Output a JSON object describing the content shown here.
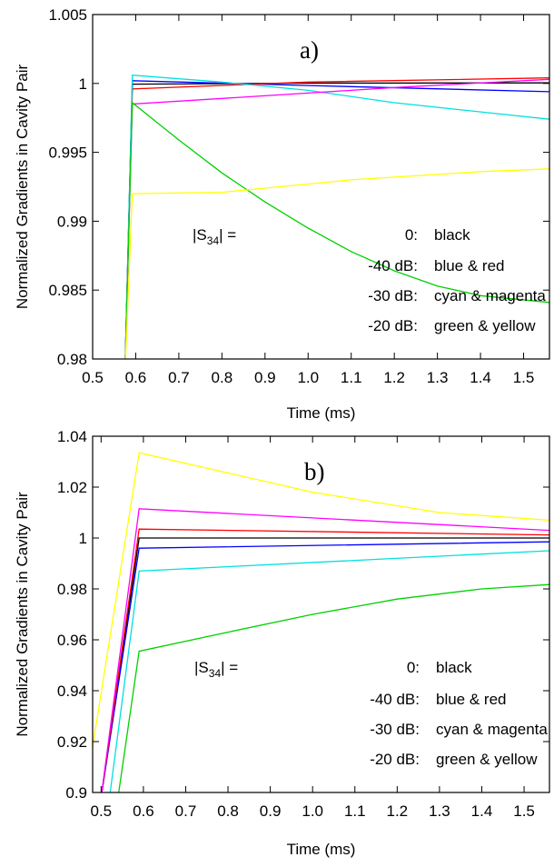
{
  "chart_data": [
    {
      "type": "line",
      "annotation": "a)",
      "xlabel": "Time (ms)",
      "ylabel": "Normalized Gradients in Cavity Pair",
      "xlim": [
        0.5,
        1.56
      ],
      "ylim": [
        0.98,
        1.005
      ],
      "xticks": [
        "0.5",
        "0.6",
        "0.7",
        "0.8",
        "0.9",
        "1.0",
        "1.1",
        "1.2",
        "1.3",
        "1.4",
        "1.5"
      ],
      "yticks": [
        "0.98",
        "0.985",
        "0.99",
        "0.995",
        "1",
        "1.005"
      ],
      "legend": {
        "line1": {
          "prefix": "|S",
          "sub": "34",
          "suffix": "|  =",
          "value": "0:",
          "desc": "black"
        },
        "line2": {
          "value": "-40 dB:",
          "desc": "blue & red"
        },
        "line3": {
          "value": "-30 dB:",
          "desc": "cyan & magenta"
        },
        "line4": {
          "value": "-20 dB:",
          "desc": "green & yellow"
        }
      },
      "series": [
        {
          "color": "#000000",
          "points": [
            [
              0.575,
              0.979
            ],
            [
              0.592,
              0.99995
            ],
            [
              1.0,
              1.00002
            ],
            [
              1.56,
              1.00004
            ]
          ]
        },
        {
          "color": "#0000ff",
          "points": [
            [
              0.575,
              0.979
            ],
            [
              0.592,
              1.0002
            ],
            [
              1.0,
              0.99985
            ],
            [
              1.56,
              0.9994
            ]
          ]
        },
        {
          "color": "#ff0000",
          "points": [
            [
              0.575,
              0.979
            ],
            [
              0.592,
              0.9996
            ],
            [
              1.0,
              1.0001
            ],
            [
              1.56,
              1.0004
            ]
          ]
        },
        {
          "color": "#00e0e0",
          "points": [
            [
              0.575,
              0.979
            ],
            [
              0.592,
              1.0006
            ],
            [
              0.8,
              1.0001
            ],
            [
              1.0,
              0.9995
            ],
            [
              1.2,
              0.9986
            ],
            [
              1.56,
              0.9974
            ]
          ]
        },
        {
          "color": "#ff00ff",
          "points": [
            [
              0.575,
              0.979
            ],
            [
              0.592,
              0.9985
            ],
            [
              1.0,
              0.9993
            ],
            [
              1.2,
              0.9997
            ],
            [
              1.56,
              1.0003
            ]
          ]
        },
        {
          "color": "#00d000",
          "points": [
            [
              0.575,
              0.979
            ],
            [
              0.592,
              0.9986
            ],
            [
              0.7,
              0.9959
            ],
            [
              0.8,
              0.9935
            ],
            [
              0.9,
              0.9914
            ],
            [
              1.0,
              0.9895
            ],
            [
              1.1,
              0.9878
            ],
            [
              1.2,
              0.9864
            ],
            [
              1.3,
              0.9853
            ],
            [
              1.4,
              0.9846
            ],
            [
              1.56,
              0.9841
            ]
          ]
        },
        {
          "color": "#ffff00",
          "points": [
            [
              0.575,
              0.979
            ],
            [
              0.592,
              0.992
            ],
            [
              0.8,
              0.9921
            ],
            [
              0.9,
              0.9924
            ],
            [
              1.0,
              0.9927
            ],
            [
              1.1,
              0.993
            ],
            [
              1.2,
              0.9932
            ],
            [
              1.3,
              0.9934
            ],
            [
              1.4,
              0.9936
            ],
            [
              1.56,
              0.9938
            ]
          ]
        }
      ]
    },
    {
      "type": "line",
      "annotation": "b)",
      "xlabel": "Time (ms)",
      "ylabel": "Normalized Gradients in Cavity Pair",
      "xlim": [
        0.48,
        1.56
      ],
      "ylim": [
        0.9,
        1.04
      ],
      "xticks": [
        "0.5",
        "0.6",
        "0.7",
        "0.8",
        "0.9",
        "1.0",
        "1.1",
        "1.2",
        "1.3",
        "1.4",
        "1.5"
      ],
      "yticks": [
        "0.9",
        "0.92",
        "0.94",
        "0.96",
        "0.98",
        "1",
        "1.02",
        "1.04"
      ],
      "legend": {
        "line1": {
          "prefix": "|S",
          "sub": "34",
          "suffix": "|  =",
          "value": "0:",
          "desc": "black"
        },
        "line2": {
          "value": "-40 dB:",
          "desc": "blue & red"
        },
        "line3": {
          "value": "-30 dB:",
          "desc": "cyan & magenta"
        },
        "line4": {
          "value": "-20 dB:",
          "desc": "green & yellow"
        }
      },
      "series": [
        {
          "color": "#000000",
          "points": [
            [
              0.5,
              0.898
            ],
            [
              0.59,
              1.0
            ],
            [
              1.56,
              1.0
            ]
          ]
        },
        {
          "color": "#0000ff",
          "points": [
            [
              0.5,
              0.898
            ],
            [
              0.59,
              0.996
            ],
            [
              1.56,
              0.9985
            ]
          ]
        },
        {
          "color": "#ff0000",
          "points": [
            [
              0.5,
              0.898
            ],
            [
              0.59,
              1.0035
            ],
            [
              1.56,
              1.0012
            ]
          ]
        },
        {
          "color": "#00e0e0",
          "points": [
            [
              0.52,
              0.898
            ],
            [
              0.59,
              0.987
            ],
            [
              1.56,
              0.995
            ]
          ]
        },
        {
          "color": "#ff00ff",
          "points": [
            [
              0.5,
              0.898
            ],
            [
              0.59,
              1.0115
            ],
            [
              1.56,
              1.003
            ]
          ]
        },
        {
          "color": "#00d000",
          "points": [
            [
              0.54,
              0.898
            ],
            [
              0.59,
              0.9555
            ],
            [
              0.8,
              0.963
            ],
            [
              1.0,
              0.97
            ],
            [
              1.2,
              0.976
            ],
            [
              1.4,
              0.98
            ],
            [
              1.56,
              0.9817
            ]
          ]
        },
        {
          "color": "#ffff00",
          "points": [
            [
              0.48,
              0.918
            ],
            [
              0.59,
              1.0335
            ],
            [
              1.0,
              1.018
            ],
            [
              1.3,
              1.01
            ],
            [
              1.56,
              1.007
            ]
          ]
        }
      ]
    }
  ]
}
